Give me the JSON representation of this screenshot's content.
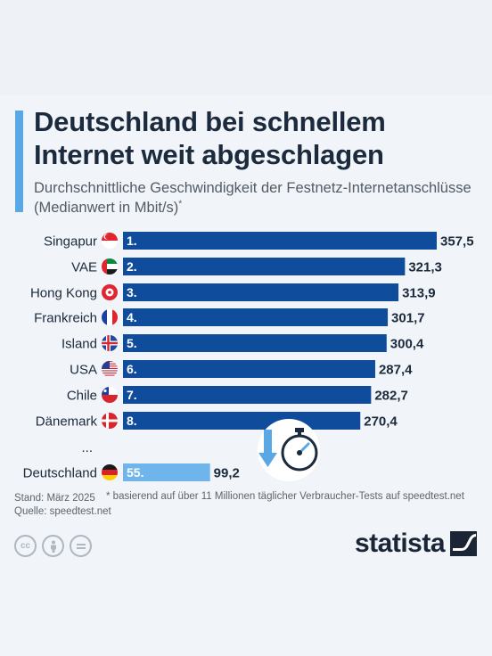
{
  "header": {
    "title": "Deutschland bei schnellem Internet weit abgeschlagen",
    "subtitle": "Durchschnittliche Geschwindigkeit der Festnetz-Internetanschlüsse (Medianwert in Mbit/s)",
    "subtitle_mark": "*"
  },
  "chart_data": {
    "type": "bar",
    "orientation": "horizontal",
    "categories": [
      "Singapur",
      "VAE",
      "Hong Kong",
      "Frankreich",
      "Island",
      "USA",
      "Chile",
      "Dänemark",
      "Deutschland"
    ],
    "ranks": [
      "1.",
      "2.",
      "3.",
      "4.",
      "5.",
      "6.",
      "7.",
      "8.",
      "55."
    ],
    "values": [
      357.5,
      321.3,
      313.9,
      301.7,
      300.4,
      287.4,
      282.7,
      270.4,
      99.2
    ],
    "value_labels": [
      "357,5",
      "321,3",
      "313,9",
      "301,7",
      "300,4",
      "287,4",
      "282,7",
      "270,4",
      "99,2"
    ],
    "flags": [
      "singapore-flag",
      "uae-flag",
      "hong-kong-flag",
      "france-flag",
      "iceland-flag",
      "usa-flag",
      "chile-flag",
      "denmark-flag",
      "germany-flag"
    ],
    "gap_label": "...",
    "colors": {
      "bar": "#0f4d9c",
      "highlight": "#6fb4ea",
      "text": "#1b2a3c"
    }
  },
  "footer": {
    "date": "Stand: März 2025",
    "note": "* basierend auf über 11 Millionen täglicher Verbraucher-Tests auf speedtest.net",
    "source": "Quelle: speedtest.net",
    "license_icons": [
      "cc-icon",
      "attribution-icon",
      "no-derivatives-icon"
    ],
    "brand": "statista"
  }
}
